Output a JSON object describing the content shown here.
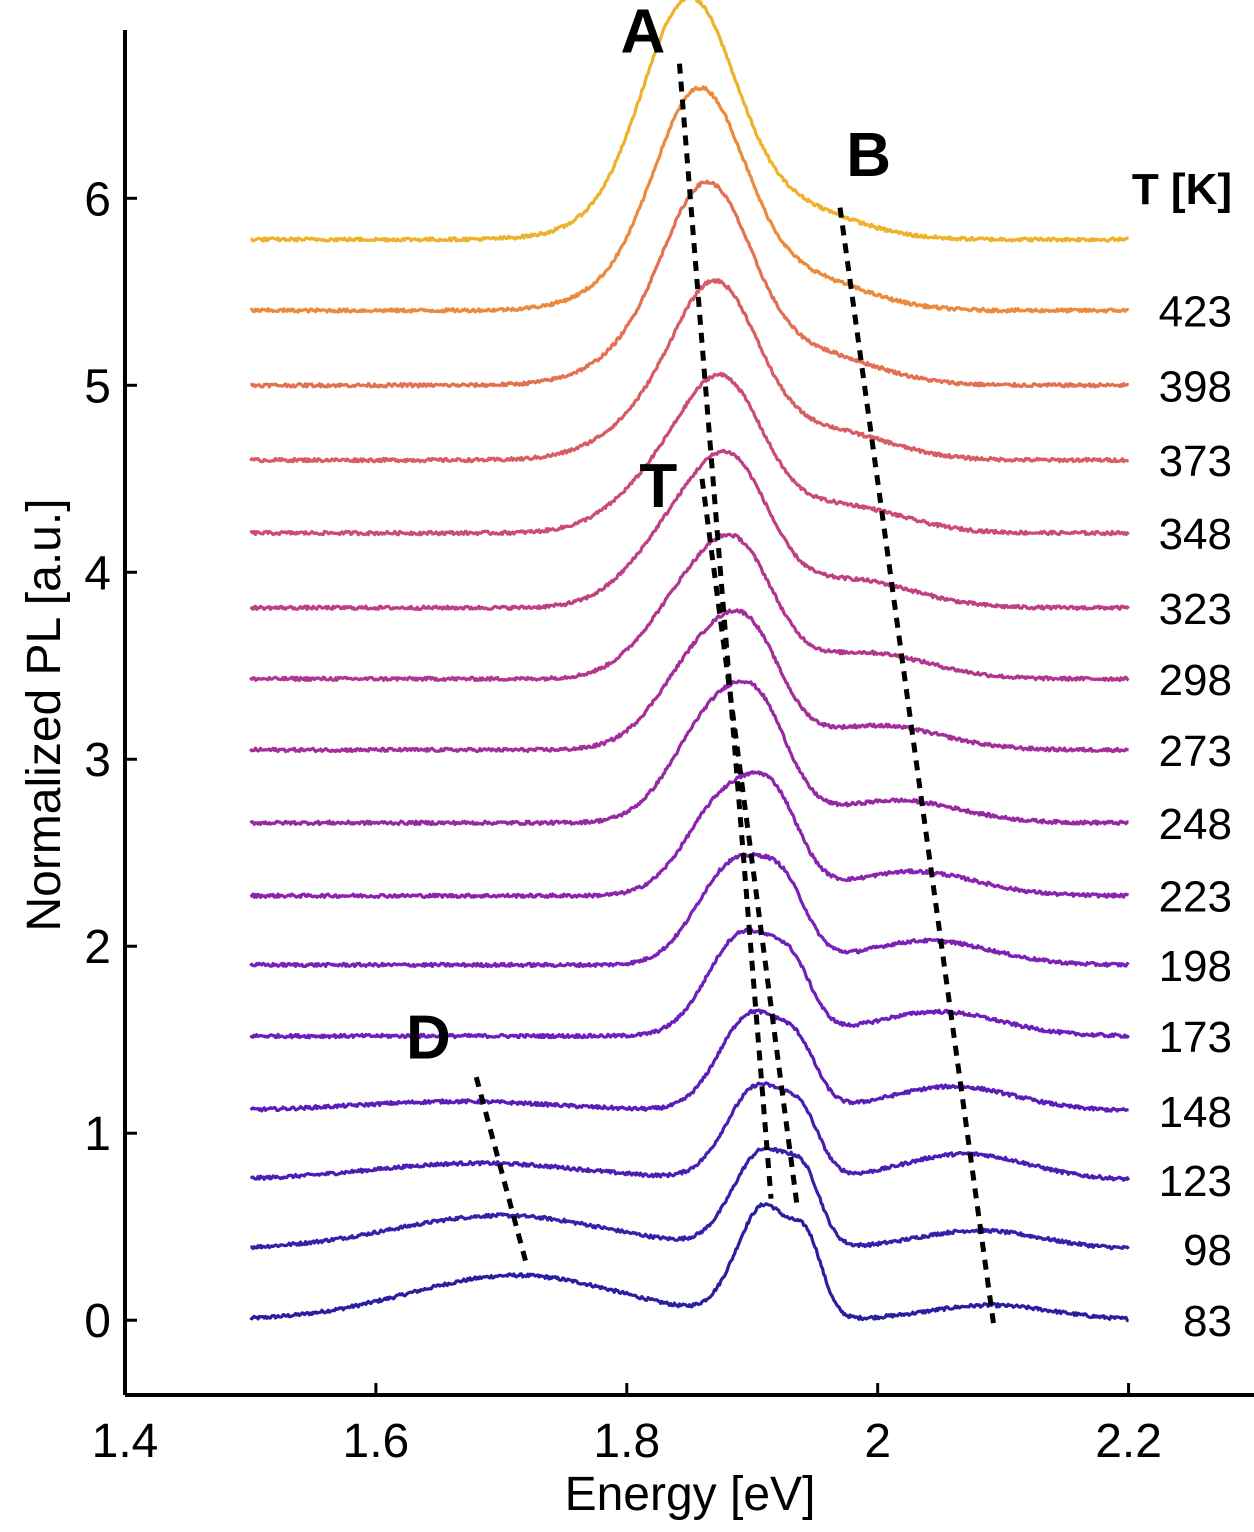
{
  "chart_data": {
    "type": "line",
    "title": "",
    "xlabel": "Energy [eV]",
    "ylabel": "Normalized PL [a.u.]",
    "xlim": [
      1.4,
      2.3
    ],
    "ylim": [
      -0.4,
      6.9
    ],
    "xticks": [
      1.4,
      1.6,
      1.8,
      2.0,
      2.2
    ],
    "xtick_labels": [
      "1.4",
      "1.6",
      "1.8",
      "2",
      "2.2"
    ],
    "yticks": [
      0,
      1,
      2,
      3,
      4,
      5,
      6
    ],
    "ytick_labels": [
      "0",
      "1",
      "2",
      "3",
      "4",
      "5",
      "6"
    ],
    "grid": false,
    "legend_title": "T [K]",
    "series": [
      {
        "name": "83",
        "offset": 0.0,
        "color": "#2a1ea0",
        "peaks": {
          "D": [
            1.712,
            0.24,
            0.085
          ],
          "T": [
            1.91,
            0.6,
            0.022
          ],
          "A": [
            1.945,
            0.3,
            0.012
          ],
          "B": [
            2.09,
            0.08,
            0.05
          ]
        }
      },
      {
        "name": "98",
        "offset": 0.38,
        "color": "#3a1eaa",
        "peaks": {
          "D": [
            1.7,
            0.18,
            0.085
          ],
          "T": [
            1.909,
            0.52,
            0.024
          ],
          "A": [
            1.943,
            0.25,
            0.013
          ],
          "B": [
            2.08,
            0.1,
            0.05
          ]
        }
      },
      {
        "name": "123",
        "offset": 0.75,
        "color": "#4a1eb2",
        "peaks": {
          "D": [
            1.682,
            0.09,
            0.085
          ],
          "T": [
            1.905,
            0.5,
            0.025
          ],
          "A": [
            1.941,
            0.22,
            0.014
          ],
          "B": [
            2.07,
            0.14,
            0.05
          ]
        }
      },
      {
        "name": "148",
        "offset": 1.12,
        "color": "#5a1eb8",
        "peaks": {
          "D": [
            1.665,
            0.05,
            0.08
          ],
          "T": [
            1.9,
            0.52,
            0.026
          ],
          "A": [
            1.938,
            0.22,
            0.015
          ],
          "B": [
            2.06,
            0.13,
            0.05
          ]
        }
      },
      {
        "name": "173",
        "offset": 1.52,
        "color": "#6c1fba",
        "peaks": {
          "T": [
            1.893,
            0.55,
            0.028
          ],
          "A": [
            1.933,
            0.24,
            0.016
          ],
          "B": [
            2.048,
            0.13,
            0.05
          ]
        }
      },
      {
        "name": "198",
        "offset": 1.9,
        "color": "#7c21b6",
        "peaks": {
          "T": [
            1.887,
            0.55,
            0.03
          ],
          "A": [
            1.927,
            0.26,
            0.018
          ],
          "B": [
            2.04,
            0.13,
            0.05
          ]
        }
      },
      {
        "name": "223",
        "offset": 2.27,
        "color": "#8a24ae",
        "peaks": {
          "T": [
            1.882,
            0.55,
            0.032
          ],
          "A": [
            1.92,
            0.3,
            0.02
          ],
          "B": [
            2.028,
            0.13,
            0.05
          ]
        }
      },
      {
        "name": "248",
        "offset": 2.66,
        "color": "#9728a4",
        "peaks": {
          "T": [
            1.874,
            0.62,
            0.034
          ],
          "A": [
            1.91,
            0.3,
            0.022
          ],
          "B": [
            2.015,
            0.12,
            0.05
          ]
        }
      },
      {
        "name": "273",
        "offset": 3.05,
        "color": "#a42e99",
        "peaks": {
          "T": [
            1.866,
            0.56,
            0.036
          ],
          "A": [
            1.902,
            0.32,
            0.024
          ],
          "B": [
            2.0,
            0.13,
            0.05
          ]
        }
      },
      {
        "name": "298",
        "offset": 3.43,
        "color": "#b1368e",
        "peaks": {
          "T": [
            1.86,
            0.54,
            0.038
          ],
          "A": [
            1.895,
            0.34,
            0.026
          ],
          "B": [
            1.99,
            0.14,
            0.05
          ]
        }
      },
      {
        "name": "323",
        "offset": 3.81,
        "color": "#be4082",
        "peaks": {
          "T": [
            1.853,
            0.52,
            0.04
          ],
          "A": [
            1.889,
            0.42,
            0.028
          ],
          "B": [
            1.978,
            0.15,
            0.05
          ]
        }
      },
      {
        "name": "348",
        "offset": 4.21,
        "color": "#ca4c74",
        "peaks": {
          "T": [
            1.845,
            0.4,
            0.042
          ],
          "A": [
            1.881,
            0.52,
            0.03
          ],
          "B": [
            1.968,
            0.15,
            0.05
          ]
        }
      },
      {
        "name": "373",
        "offset": 4.6,
        "color": "#d85c64",
        "peaks": {
          "T": [
            1.838,
            0.3,
            0.044
          ],
          "A": [
            1.874,
            0.7,
            0.032
          ],
          "B": [
            1.957,
            0.16,
            0.05
          ]
        }
      },
      {
        "name": "398",
        "offset": 5.0,
        "color": "#e47052",
        "peaks": {
          "T": [
            1.83,
            0.22,
            0.045
          ],
          "A": [
            1.866,
            0.88,
            0.034
          ],
          "B": [
            1.947,
            0.17,
            0.05
          ]
        }
      },
      {
        "name": "423",
        "offset": 5.4,
        "color": "#eb8a3c",
        "peaks": {
          "T": [
            1.823,
            0.16,
            0.046
          ],
          "A": [
            1.859,
            1.02,
            0.035
          ],
          "B": [
            1.937,
            0.18,
            0.05
          ]
        }
      },
      {
        "name": "",
        "offset": 5.78,
        "color": "#eeb22a",
        "peaks": {
          "T": [
            1.815,
            0.12,
            0.047
          ],
          "A": [
            1.85,
            1.15,
            0.036
          ],
          "B": [
            1.927,
            0.18,
            0.05
          ]
        }
      }
    ],
    "temperature_labels": [
      "423",
      "398",
      "373",
      "348",
      "323",
      "298",
      "273",
      "248",
      "223",
      "198",
      "173",
      "148",
      "123",
      "98",
      "83"
    ],
    "annotations": [
      {
        "text": "A",
        "label_at": [
          1.795,
          6.78
        ],
        "line_from": [
          1.842,
          6.72
        ],
        "line_to": [
          1.915,
          0.65
        ]
      },
      {
        "text": "B",
        "label_at": [
          1.975,
          6.12
        ],
        "line_from": [
          1.97,
          5.95
        ],
        "line_to": [
          2.093,
          -0.05
        ]
      },
      {
        "text": "T",
        "label_at": [
          1.81,
          4.35
        ],
        "line_from": [
          1.86,
          4.5
        ],
        "line_to": [
          1.936,
          0.6
        ]
      },
      {
        "text": "D",
        "label_at": [
          1.624,
          1.4
        ],
        "line_from": [
          1.68,
          1.3
        ],
        "line_to": [
          1.72,
          0.3
        ]
      }
    ]
  }
}
